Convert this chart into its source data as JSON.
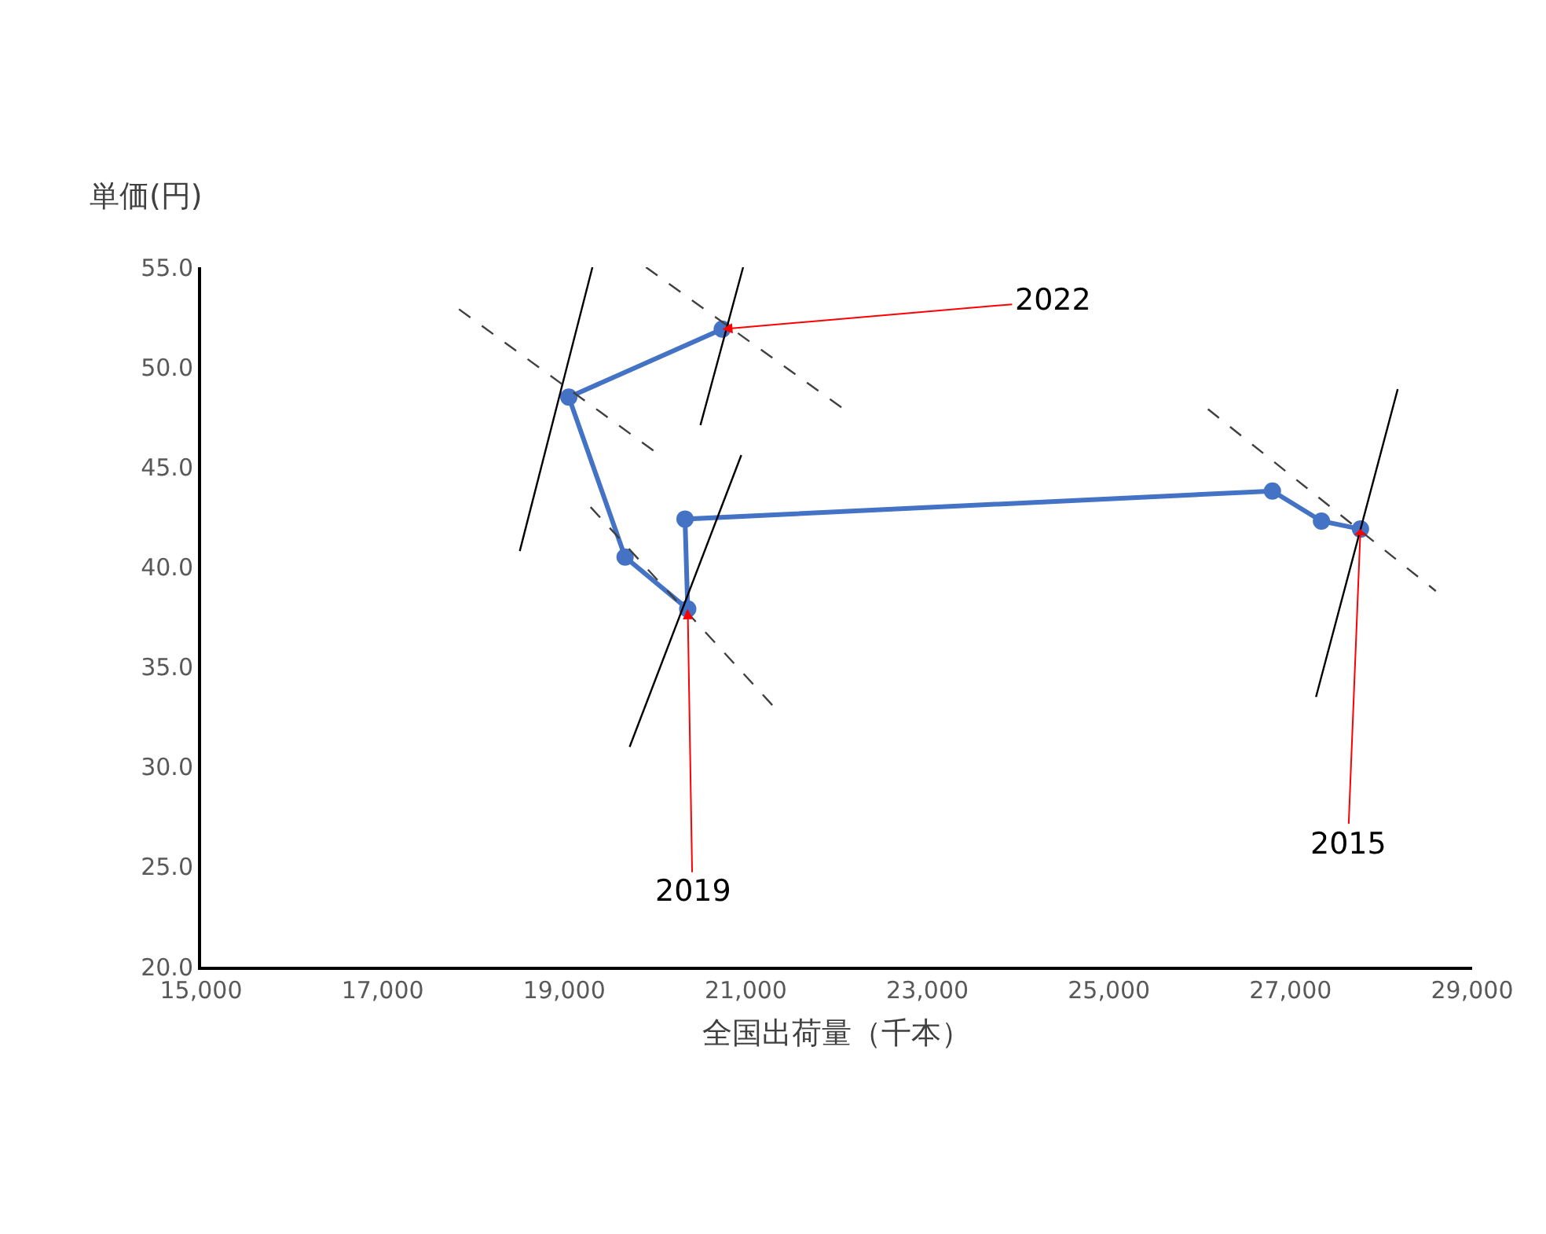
{
  "chart_data": {
    "type": "line",
    "xlabel": "全国出荷量（千本）",
    "ylabel": "単価(円)",
    "xlim": [
      15000,
      29000
    ],
    "ylim": [
      20,
      55
    ],
    "xticks": [
      {
        "value": 15000,
        "label": "15,000"
      },
      {
        "value": 17000,
        "label": "17,000"
      },
      {
        "value": 19000,
        "label": "19,000"
      },
      {
        "value": 21000,
        "label": "21,000"
      },
      {
        "value": 23000,
        "label": "23,000"
      },
      {
        "value": 25000,
        "label": "25,000"
      },
      {
        "value": 27000,
        "label": "27,000"
      },
      {
        "value": 29000,
        "label": "29,000"
      }
    ],
    "yticks": [
      {
        "value": 20,
        "label": "20.0"
      },
      {
        "value": 25,
        "label": "25.0"
      },
      {
        "value": 30,
        "label": "30.0"
      },
      {
        "value": 35,
        "label": "35.0"
      },
      {
        "value": 40,
        "label": "40.0"
      },
      {
        "value": 45,
        "label": "45.0"
      },
      {
        "value": 50,
        "label": "50.0"
      },
      {
        "value": 55,
        "label": "55.0"
      }
    ],
    "series": [
      {
        "color": "#4472c4",
        "marker": "circle",
        "line_style": "solid",
        "x": [
          27770,
          27340,
          26800,
          20330,
          20360,
          19670,
          19050,
          20740
        ],
        "values": [
          41.9,
          42.3,
          43.8,
          42.4,
          37.9,
          40.5,
          48.5,
          51.9
        ]
      },
      {
        "color": "#000000",
        "marker": "none",
        "line_style": "solid",
        "x": [
          27280,
          28180
        ],
        "values": [
          33.5,
          48.9
        ]
      },
      {
        "color": "#404040",
        "marker": "none",
        "line_style": "dashed",
        "x": [
          26090,
          28600
        ],
        "values": [
          47.9,
          38.8
        ]
      },
      {
        "color": "#000000",
        "marker": "none",
        "line_style": "solid",
        "x": [
          19720,
          20950
        ],
        "values": [
          31.0,
          45.6
        ]
      },
      {
        "color": "#404040",
        "marker": "none",
        "line_style": "dashed",
        "x": [
          19290,
          21310
        ],
        "values": [
          43.0,
          33.0
        ]
      },
      {
        "color": "#000000",
        "marker": "none",
        "line_style": "solid",
        "x": [
          18510,
          19310
        ],
        "values": [
          40.8,
          55.0
        ]
      },
      {
        "color": "#404040",
        "marker": "none",
        "line_style": "dashed",
        "x": [
          17840,
          20020
        ],
        "values": [
          52.9,
          45.7
        ]
      },
      {
        "color": "#000000",
        "marker": "none",
        "line_style": "solid",
        "x": [
          20500,
          20970
        ],
        "values": [
          47.1,
          55.0
        ]
      },
      {
        "color": "#404040",
        "marker": "none",
        "line_style": "dashed",
        "x": [
          19900,
          22080
        ],
        "values": [
          55.0,
          47.9
        ]
      }
    ],
    "annotations": [
      {
        "text": "2022",
        "x": 20740,
        "y": 51.9
      },
      {
        "text": "2019",
        "x": 20360,
        "y": 37.9
      },
      {
        "text": "2015",
        "x": 27770,
        "y": 41.9
      }
    ]
  }
}
